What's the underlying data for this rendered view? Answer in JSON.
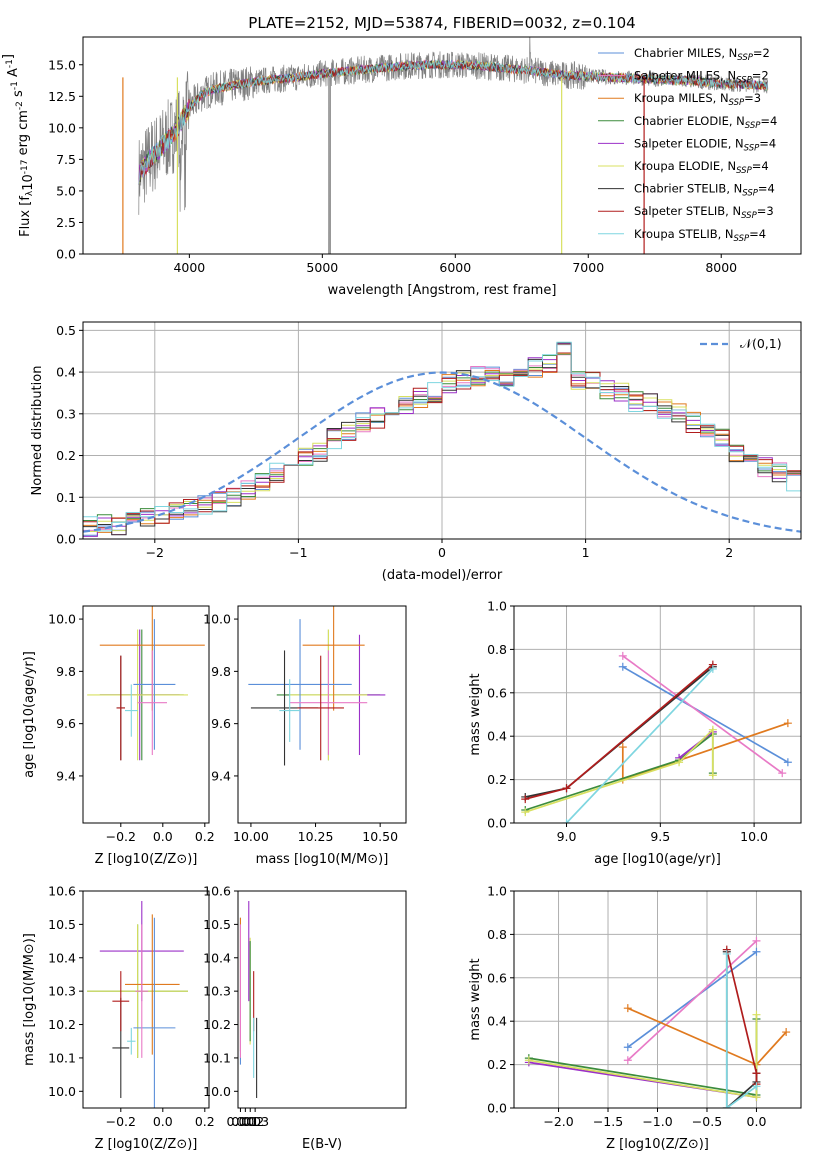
{
  "chart_data": [
    {
      "type": "line",
      "title": "PLATE=2152, MJD=53874, FIBERID=0032, z=0.104",
      "xlabel": "wavelength [Angstrom, rest frame]",
      "ylabel": "Flux [f_λ10^{-17} erg cm^{-2} s^{-1} A^{-1}]",
      "xlim": [
        3200,
        8600
      ],
      "ylim": [
        0,
        17.2
      ],
      "xticks": [
        4000,
        5000,
        6000,
        7000,
        8000
      ],
      "yticks": [
        0.0,
        2.5,
        5.0,
        7.5,
        10.0,
        12.5,
        15.0
      ],
      "legend_position": "right",
      "series": [
        {
          "name": "Chabrier MILES, N_SSP=2",
          "color": "#5b8fd9"
        },
        {
          "name": "Salpeter MILES, N_SSP=2",
          "color": "#e87ac6"
        },
        {
          "name": "Kroupa MILES, N_SSP=3",
          "color": "#e07a1f"
        },
        {
          "name": "Chabrier ELODIE, N_SSP=4",
          "color": "#3c8c3c"
        },
        {
          "name": "Salpeter ELODIE, N_SSP=4",
          "color": "#9b30c8"
        },
        {
          "name": "Kroupa ELODIE, N_SSP=4",
          "color": "#d8e060"
        },
        {
          "name": "Chabrier STELIB, N_SSP=4",
          "color": "#333333"
        },
        {
          "name": "Salpeter STELIB, N_SSP=3",
          "color": "#b01d1d"
        },
        {
          "name": "Kroupa STELIB, N_SSP=4",
          "color": "#7fd6e0"
        }
      ],
      "data_color": "#808080",
      "continuum": {
        "x": [
          3600,
          3700,
          3800,
          3900,
          4000,
          4100,
          4200,
          4400,
          4600,
          4800,
          5000,
          5200,
          5400,
          5600,
          5800,
          6000,
          6200,
          6400,
          6600,
          6800,
          7000,
          7200,
          7400,
          7600,
          7800,
          8000,
          8200,
          8350
        ],
        "y": [
          6.0,
          7.5,
          8.6,
          9.8,
          11.6,
          12.7,
          13.1,
          13.5,
          13.8,
          14.0,
          14.3,
          14.5,
          14.7,
          14.9,
          15.0,
          15.0,
          14.9,
          14.7,
          14.5,
          14.2,
          14.1,
          14.0,
          13.9,
          13.8,
          13.7,
          13.5,
          13.4,
          13.3
        ]
      }
    },
    {
      "type": "histogram",
      "xlabel": "(data-model)/error",
      "ylabel": "Normed distribution",
      "xlim": [
        -2.5,
        2.5
      ],
      "ylim": [
        0,
        0.52
      ],
      "xticks": [
        -2,
        -1,
        0,
        1,
        2
      ],
      "yticks": [
        0.0,
        0.1,
        0.2,
        0.3,
        0.4,
        0.5
      ],
      "grid": true,
      "reference_curve": {
        "name": "𝒩(0,1)",
        "color": "#5b8fd9",
        "style": "dashed"
      },
      "bin_width": 0.1,
      "bin_start": -2.6,
      "median_distribution": [
        0.03,
        0.03,
        0.035,
        0.035,
        0.04,
        0.05,
        0.06,
        0.07,
        0.075,
        0.08,
        0.09,
        0.1,
        0.12,
        0.14,
        0.16,
        0.18,
        0.2,
        0.21,
        0.24,
        0.26,
        0.28,
        0.29,
        0.31,
        0.32,
        0.34,
        0.35,
        0.37,
        0.38,
        0.39,
        0.4,
        0.39,
        0.4,
        0.41,
        0.42,
        0.45,
        0.38,
        0.38,
        0.36,
        0.35,
        0.33,
        0.33,
        0.31,
        0.3,
        0.28,
        0.26,
        0.24,
        0.21,
        0.19,
        0.17,
        0.16,
        0.14,
        0.12,
        0.11,
        0.09,
        0.08,
        0.07,
        0.065,
        0.055,
        0.045,
        0.04,
        0.035,
        0.03
      ]
    },
    {
      "type": "scatter",
      "xlabel": "Z [log10(Z/Z⊙)]",
      "ylabel": "age  [log10(age/yr)]",
      "xlim": [
        -0.38,
        0.22
      ],
      "ylim": [
        9.22,
        10.05
      ],
      "xticks": [
        "−0.2",
        "0.0",
        "0.2"
      ],
      "yticks": [
        "9.4",
        "9.6",
        "9.8",
        "10.0"
      ],
      "points": [
        {
          "x": -0.1,
          "xerr": 0.2,
          "y": 9.71,
          "yerr": 0.25,
          "color": "#3c8c3c"
        },
        {
          "x": -0.11,
          "xerr": 0.19,
          "y": 9.71,
          "yerr": 0.25,
          "color": "#9b30c8"
        },
        {
          "x": -0.12,
          "xerr": 0.24,
          "y": 9.71,
          "yerr": 0.25,
          "color": "#d8e060"
        },
        {
          "x": -0.05,
          "xerr": 0.25,
          "y": 9.9,
          "yerr": 0.25,
          "color": "#e07a1f"
        },
        {
          "x": -0.04,
          "xerr": 0.1,
          "y": 9.75,
          "yerr": 0.25,
          "color": "#5b8fd9"
        },
        {
          "x": -0.05,
          "xerr": 0.07,
          "y": 9.68,
          "yerr": 0.2,
          "color": "#e87ac6"
        },
        {
          "x": -0.2,
          "xerr": 0.02,
          "y": 9.66,
          "yerr": 0.2,
          "color": "#333333"
        },
        {
          "x": -0.2,
          "xerr": 0.02,
          "y": 9.66,
          "yerr": 0.2,
          "color": "#b01d1d"
        },
        {
          "x": -0.15,
          "xerr": 0.03,
          "y": 9.65,
          "yerr": 0.1,
          "color": "#7fd6e0"
        }
      ]
    },
    {
      "type": "scatter",
      "xlabel": "mass [log10(M/M⊙)]",
      "ylabel": "",
      "xlim": [
        9.95,
        10.6
      ],
      "ylim": [
        9.22,
        10.05
      ],
      "xticks": [
        "10.00",
        "10.25",
        "10.50"
      ],
      "yticks": [
        "9.4",
        "9.6",
        "9.8",
        "10.0"
      ],
      "points": [
        {
          "x": 10.3,
          "xerr": 0.2,
          "y": 9.71,
          "yerr": 0.25,
          "color": "#3c8c3c"
        },
        {
          "x": 10.42,
          "xerr": 0.1,
          "y": 9.71,
          "yerr": 0.23,
          "color": "#9b30c8"
        },
        {
          "x": 10.3,
          "xerr": 0.15,
          "y": 9.71,
          "yerr": 0.25,
          "color": "#d8e060"
        },
        {
          "x": 10.32,
          "xerr": 0.12,
          "y": 9.9,
          "yerr": 0.25,
          "color": "#e07a1f"
        },
        {
          "x": 10.19,
          "xerr": 0.2,
          "y": 9.75,
          "yerr": 0.25,
          "color": "#5b8fd9"
        },
        {
          "x": 10.3,
          "xerr": 0.15,
          "y": 9.68,
          "yerr": 0.2,
          "color": "#e87ac6"
        },
        {
          "x": 10.13,
          "xerr": 0.13,
          "y": 9.66,
          "yerr": 0.22,
          "color": "#333333"
        },
        {
          "x": 10.27,
          "xerr": 0.09,
          "y": 9.66,
          "yerr": 0.2,
          "color": "#b01d1d"
        },
        {
          "x": 10.15,
          "xerr": 0.04,
          "y": 9.65,
          "yerr": 0.12,
          "color": "#7fd6e0"
        }
      ]
    },
    {
      "type": "line",
      "xlabel": "age  [log10(age/yr)]",
      "ylabel": "mass weight",
      "xlim": [
        8.72,
        10.25
      ],
      "ylim": [
        0,
        1.0
      ],
      "xticks": [
        "9.0",
        "9.5",
        "10.0"
      ],
      "yticks": [
        "0.0",
        "0.2",
        "0.4",
        "0.6",
        "0.8",
        "1.0"
      ],
      "grid": true,
      "series": [
        {
          "color": "#5b8fd9",
          "x": [
            9.3,
            10.18
          ],
          "y": [
            0.72,
            0.28
          ]
        },
        {
          "color": "#e87ac6",
          "x": [
            9.3,
            10.15
          ],
          "y": [
            0.77,
            0.23
          ]
        },
        {
          "color": "#e07a1f",
          "x": [
            9.3,
            9.3,
            10.18
          ],
          "y": [
            0.35,
            0.2,
            0.46
          ]
        },
        {
          "color": "#3c8c3c",
          "x": [
            8.78,
            9.6,
            9.78,
            9.78
          ],
          "y": [
            0.06,
            0.29,
            0.41,
            0.23
          ]
        },
        {
          "color": "#9b30c8",
          "x": [
            9.6,
            9.78
          ],
          "y": [
            0.3,
            0.42
          ]
        },
        {
          "color": "#d8e060",
          "x": [
            8.78,
            9.6,
            9.78,
            9.78
          ],
          "y": [
            0.05,
            0.28,
            0.43,
            0.22
          ]
        },
        {
          "color": "#333333",
          "x": [
            8.78,
            9.0,
            9.78
          ],
          "y": [
            0.12,
            0.16,
            0.72
          ]
        },
        {
          "color": "#b01d1d",
          "x": [
            8.78,
            9.0,
            9.78
          ],
          "y": [
            0.11,
            0.16,
            0.73
          ]
        },
        {
          "color": "#7fd6e0",
          "x": [
            9.0,
            9.78
          ],
          "y": [
            0.0,
            0.71
          ]
        }
      ]
    },
    {
      "type": "scatter",
      "xlabel": "Z [log10(Z/Z⊙)]",
      "ylabel": "mass [log10(M/M⊙)]",
      "xlim": [
        -0.38,
        0.22
      ],
      "ylim": [
        9.95,
        10.6
      ],
      "xticks": [
        "−0.2",
        "0.0",
        "0.2"
      ],
      "yticks": [
        "10.0",
        "10.1",
        "10.2",
        "10.3",
        "10.4",
        "10.5",
        "10.6"
      ],
      "points": [
        {
          "x": -0.12,
          "xerr": 0.24,
          "y": 10.3,
          "yerr": 0.2,
          "color": "#3c8c3c"
        },
        {
          "x": -0.1,
          "xerr": 0.2,
          "y": 10.42,
          "yerr": 0.15,
          "color": "#9b30c8"
        },
        {
          "x": -0.12,
          "xerr": 0.24,
          "y": 10.3,
          "yerr": 0.2,
          "color": "#d8e060"
        },
        {
          "x": -0.05,
          "xerr": 0.13,
          "y": 10.32,
          "yerr": 0.21,
          "color": "#e07a1f"
        },
        {
          "x": -0.04,
          "xerr": 0.1,
          "y": 10.19,
          "yerr": 0.33,
          "color": "#5b8fd9"
        },
        {
          "x": -0.1,
          "xerr": 0.03,
          "y": 10.3,
          "yerr": 0.2,
          "color": "#e87ac6"
        },
        {
          "x": -0.2,
          "xerr": 0.04,
          "y": 10.13,
          "yerr": 0.15,
          "color": "#333333"
        },
        {
          "x": -0.2,
          "xerr": 0.04,
          "y": 10.27,
          "yerr": 0.09,
          "color": "#b01d1d"
        },
        {
          "x": -0.15,
          "xerr": 0.02,
          "y": 10.15,
          "yerr": 0.04,
          "color": "#7fd6e0"
        }
      ]
    },
    {
      "type": "scatter",
      "xlabel": "E(B-V)",
      "ylabel": "",
      "xlim": [
        -0.005,
        0.338
      ],
      "ylim": [
        9.95,
        10.6
      ],
      "xticks": [
        "0.00",
        "0.01",
        "0.02",
        "0.03"
      ],
      "yticks": [
        "10.0",
        "10.1",
        "10.2",
        "10.3",
        "10.4",
        "10.5",
        "10.6"
      ],
      "points": [
        {
          "x": 0.0,
          "y": 10.3,
          "yerr": 0.22,
          "color": "#5b8fd9"
        },
        {
          "x": 0.0,
          "y": 10.32,
          "yerr": 0.2,
          "color": "#e07a1f"
        },
        {
          "x": 0.0,
          "y": 10.3,
          "yerr": 0.2,
          "color": "#e87ac6"
        },
        {
          "x": 0.017,
          "y": 10.42,
          "yerr": 0.15,
          "color": "#9b30c8"
        },
        {
          "x": 0.0198,
          "y": 10.3,
          "yerr": 0.16,
          "color": "#d8e060"
        },
        {
          "x": 0.0198,
          "y": 10.3,
          "yerr": 0.15,
          "color": "#3c8c3c"
        },
        {
          "x": 0.027,
          "y": 10.27,
          "yerr": 0.09,
          "color": "#b01d1d"
        },
        {
          "x": 0.027,
          "y": 10.13,
          "yerr": 0.09,
          "color": "#7fd6e0"
        },
        {
          "x": 0.033,
          "y": 10.1,
          "yerr": 0.12,
          "color": "#333333"
        }
      ]
    },
    {
      "type": "line",
      "xlabel": "Z [log10(Z/Z⊙)]",
      "ylabel": "mass weight",
      "xlim": [
        -2.45,
        0.45
      ],
      "ylim": [
        0,
        1.0
      ],
      "xticks": [
        "−2.0",
        "−1.5",
        "−1.0",
        "−0.5",
        "0.0"
      ],
      "yticks": [
        "0.0",
        "0.2",
        "0.4",
        "0.6",
        "0.8",
        "1.0"
      ],
      "grid": true,
      "series": [
        {
          "color": "#5b8fd9",
          "x": [
            -1.3,
            0.0
          ],
          "y": [
            0.28,
            0.72
          ]
        },
        {
          "color": "#e87ac6",
          "x": [
            -1.3,
            0.0
          ],
          "y": [
            0.22,
            0.77
          ]
        },
        {
          "color": "#e07a1f",
          "x": [
            -1.3,
            0.0,
            0.3
          ],
          "y": [
            0.46,
            0.2,
            0.35
          ]
        },
        {
          "color": "#3c8c3c",
          "x": [
            -2.3,
            0.0,
            0.0
          ],
          "y": [
            0.23,
            0.06,
            0.41
          ]
        },
        {
          "color": "#9b30c8",
          "x": [
            -2.3,
            0.0
          ],
          "y": [
            0.21,
            0.05
          ]
        },
        {
          "color": "#d8e060",
          "x": [
            -2.3,
            0.0,
            0.0
          ],
          "y": [
            0.22,
            0.05,
            0.43
          ]
        },
        {
          "color": "#333333",
          "x": [
            -0.3,
            -0.3,
            0.0,
            0.0
          ],
          "y": [
            0.72,
            0.0,
            0.12,
            0.16
          ]
        },
        {
          "color": "#b01d1d",
          "x": [
            -0.3,
            0.0,
            0.0
          ],
          "y": [
            0.73,
            0.16,
            0.11
          ]
        },
        {
          "color": "#7fd6e0",
          "x": [
            -0.3,
            -0.3,
            0.0
          ],
          "y": [
            0.71,
            0.0,
            0.1
          ]
        }
      ]
    }
  ]
}
